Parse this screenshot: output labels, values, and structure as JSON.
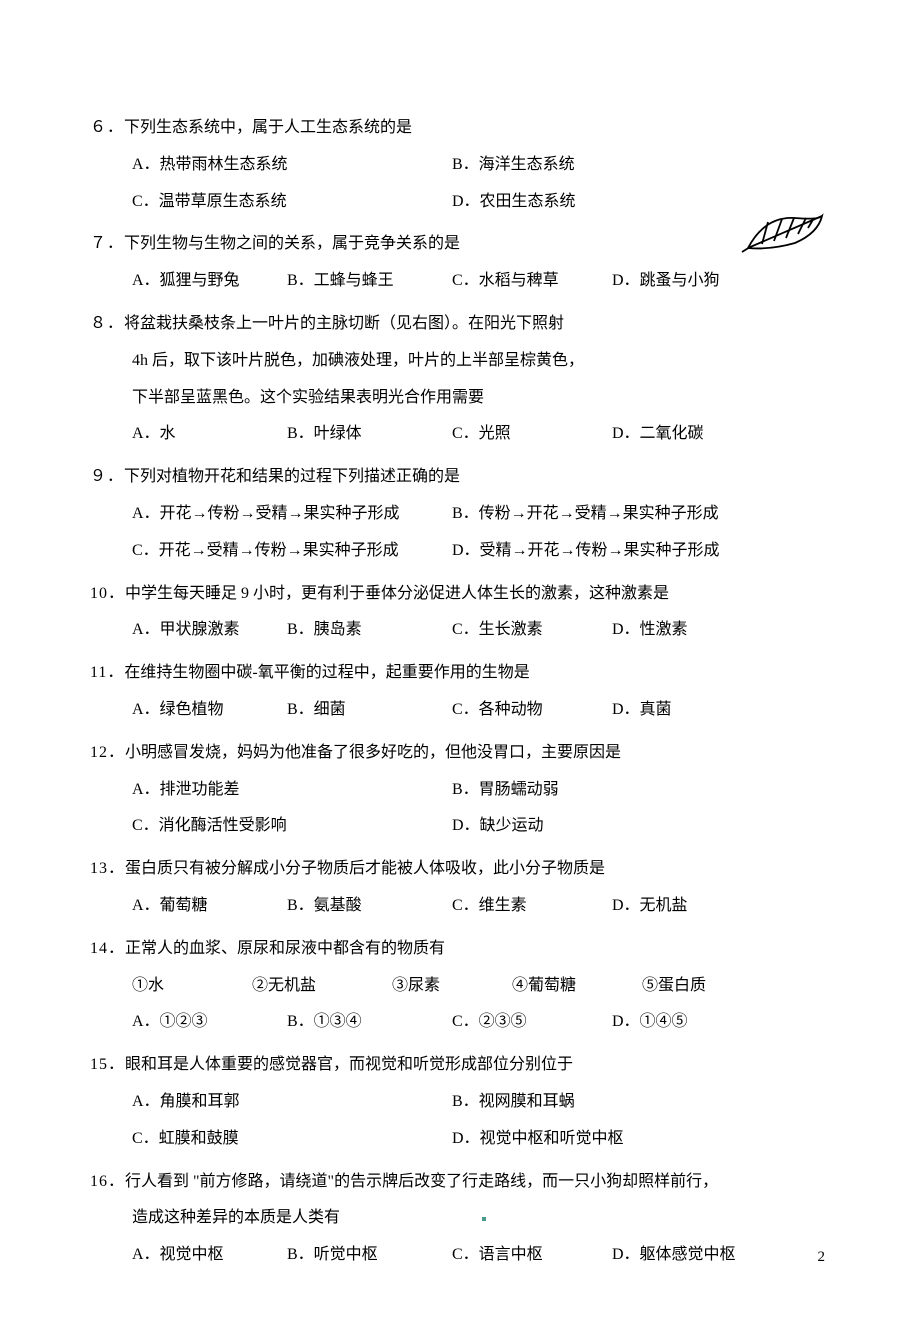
{
  "page_number": "2",
  "leaf_image": {
    "stroke": "#000000",
    "fill": "#ffffff"
  },
  "questions": [
    {
      "num": "６．",
      "stem": "下列生态系统中，属于人工生态系统的是",
      "layout": "2col-2row",
      "options": [
        [
          "A．热带雨林生态系统",
          "B．海洋生态系统"
        ],
        [
          "C．温带草原生态系统",
          "D．农田生态系统"
        ]
      ]
    },
    {
      "num": "７．",
      "stem": "下列生物与生物之间的关系，属于竞争关系的是",
      "layout": "4col",
      "options": [
        "A．狐狸与野兔",
        "B．工蜂与蜂王",
        "C．水稻与稗草",
        "D．跳蚤与小狗"
      ]
    },
    {
      "num": "８．",
      "stem": "将盆栽扶桑枝条上一叶片的主脉切断（见右图）。在阳光下照射",
      "cont": [
        "4h 后，取下该叶片脱色，加碘液处理，叶片的上半部呈棕黄色，",
        "下半部呈蓝黑色。这个实验结果表明光合作用需要"
      ],
      "layout": "4col",
      "options": [
        "A．水",
        "B．叶绿体",
        "C．光照",
        "D．二氧化碳"
      ]
    },
    {
      "num": "９．",
      "stem": "下列对植物开花和结果的过程下列描述正确的是",
      "layout": "2col-2row",
      "options": [
        [
          "A．开花→传粉→受精→果实种子形成",
          "B．传粉→开花→受精→果实种子形成"
        ],
        [
          "C．开花→受精→传粉→果实种子形成",
          "D．受精→开花→传粉→果实种子形成"
        ]
      ]
    },
    {
      "num": "10．",
      "stem": "中学生每天睡足 9 小时，更有利于垂体分泌促进人体生长的激素，这种激素是",
      "layout": "4col",
      "options": [
        "A．甲状腺激素",
        "B．胰岛素",
        "C．生长激素",
        "D．性激素"
      ]
    },
    {
      "num": "11．",
      "stem": "在维持生物圈中碳-氧平衡的过程中，起重要作用的生物是",
      "layout": "4col",
      "options": [
        "A．绿色植物",
        "B．细菌",
        "C．各种动物",
        "D．真菌"
      ]
    },
    {
      "num": "12．",
      "stem": "小明感冒发烧，妈妈为他准备了很多好吃的，但他没胃口，主要原因是",
      "layout": "2col-2row",
      "options": [
        [
          "A．排泄功能差",
          "B．胃肠蠕动弱"
        ],
        [
          "C．消化酶活性受影响",
          "D．缺少运动"
        ]
      ]
    },
    {
      "num": "13．",
      "stem": "蛋白质只有被分解成小分子物质后才能被人体吸收，此小分子物质是",
      "layout": "4col",
      "options": [
        "A．葡萄糖",
        "B．氨基酸",
        "C．维生素",
        "D．无机盐"
      ]
    },
    {
      "num": "14．",
      "stem": "正常人的血浆、原尿和尿液中都含有的物质有",
      "items": [
        "①水",
        "②无机盐",
        "③尿素",
        "④葡萄糖",
        "⑤蛋白质"
      ],
      "layout": "4col",
      "options": [
        "A．①②③",
        "B．①③④",
        "C．②③⑤",
        "D．①④⑤"
      ]
    },
    {
      "num": "15．",
      "stem": "眼和耳是人体重要的感觉器官，而视觉和听觉形成部位分别位于",
      "layout": "2col-2row",
      "options": [
        [
          "A．角膜和耳郭",
          "B．视网膜和耳蜗"
        ],
        [
          "C．虹膜和鼓膜",
          "D．视觉中枢和听觉中枢"
        ]
      ]
    },
    {
      "num": "16．",
      "stem": "行人看到 \"前方修路，请绕道\"的告示牌后改变了行走路线，而一只小狗却照样前行，",
      "cont": [
        "造成这种差异的本质是人类有"
      ],
      "has_dot": true,
      "layout": "4col",
      "options": [
        "A．视觉中枢",
        "B．听觉中枢",
        "C．语言中枢",
        "D．躯体感觉中枢"
      ]
    }
  ]
}
